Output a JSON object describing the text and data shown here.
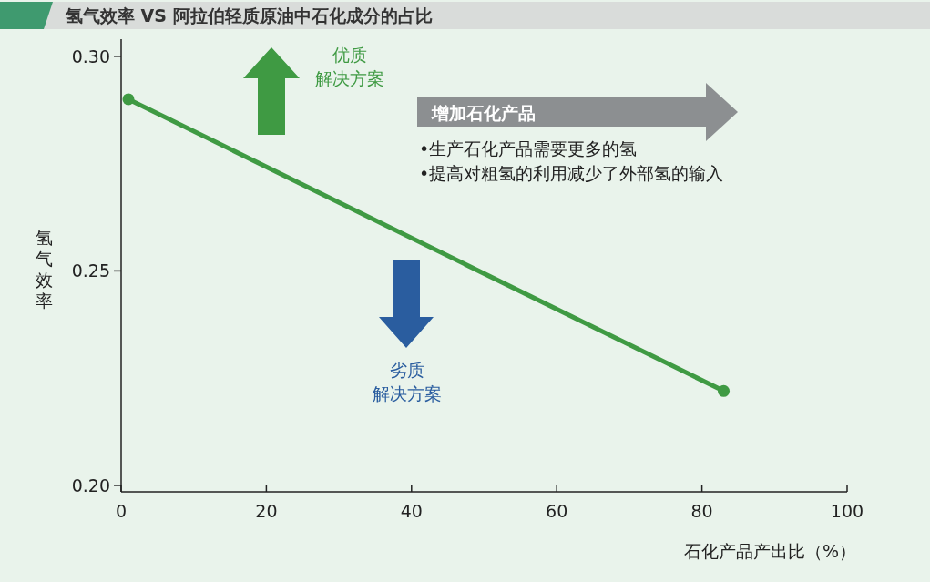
{
  "chart_data": {
    "type": "line",
    "title": "氢气效率 VS 阿拉伯轻质原油中石化成分的占比",
    "x": [
      1,
      83
    ],
    "series": [
      {
        "color": "#3f9a43",
        "values": [
          0.29,
          0.222
        ]
      }
    ],
    "xlim": [
      0,
      100
    ],
    "xticks": [
      0,
      20,
      40,
      60,
      80,
      100
    ],
    "ylim": [
      0.1985,
      0.304
    ],
    "yticks": [
      {
        "value": 0.2,
        "label": "0.20"
      },
      0.25,
      {
        "value": 0.3,
        "label": "0.30"
      }
    ],
    "xlabel": "石化产品产出比（%）",
    "ylabel": "氢气效率",
    "marker": "circle",
    "grid": false,
    "annotations": [
      "优质",
      "解决方案",
      "劣质",
      "解决方案",
      "增加石化产品",
      "•生产石化产品需要更多的氢",
      "•提高对粗氢的利用减少了外部氢的输入"
    ]
  }
}
